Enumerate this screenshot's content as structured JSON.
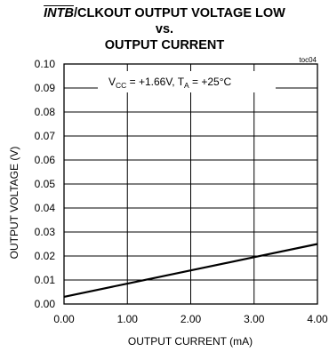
{
  "title": {
    "part1": "INTB",
    "part2": "/CLKOUT OUTPUT VOLTAGE LOW",
    "line2": "vs.",
    "line3": "OUTPUT CURRENT"
  },
  "note": "toc04",
  "annotation": {
    "v": "V",
    "cc": "CC",
    "vmid": " = +1.66V, T",
    "a": "A",
    "vend": " = +25°C"
  },
  "chart_data": {
    "type": "line",
    "title": "INTB/CLKOUT OUTPUT VOLTAGE LOW vs. OUTPUT CURRENT",
    "xlabel": "OUTPUT CURRENT (mA)",
    "ylabel": "OUTPUT VOLTAGE (V)",
    "xlim": [
      0,
      4
    ],
    "ylim": [
      0,
      0.1
    ],
    "xticks": [
      "0.00",
      "1.00",
      "2.00",
      "3.00",
      "4.00"
    ],
    "yticks": [
      "0.00",
      "0.01",
      "0.02",
      "0.03",
      "0.04",
      "0.05",
      "0.06",
      "0.07",
      "0.08",
      "0.09",
      "0.10"
    ],
    "grid": true,
    "series": [
      {
        "x": [
          0,
          1,
          2,
          3,
          4
        ],
        "values": [
          0.003,
          0.0085,
          0.014,
          0.0195,
          0.025
        ]
      }
    ]
  }
}
